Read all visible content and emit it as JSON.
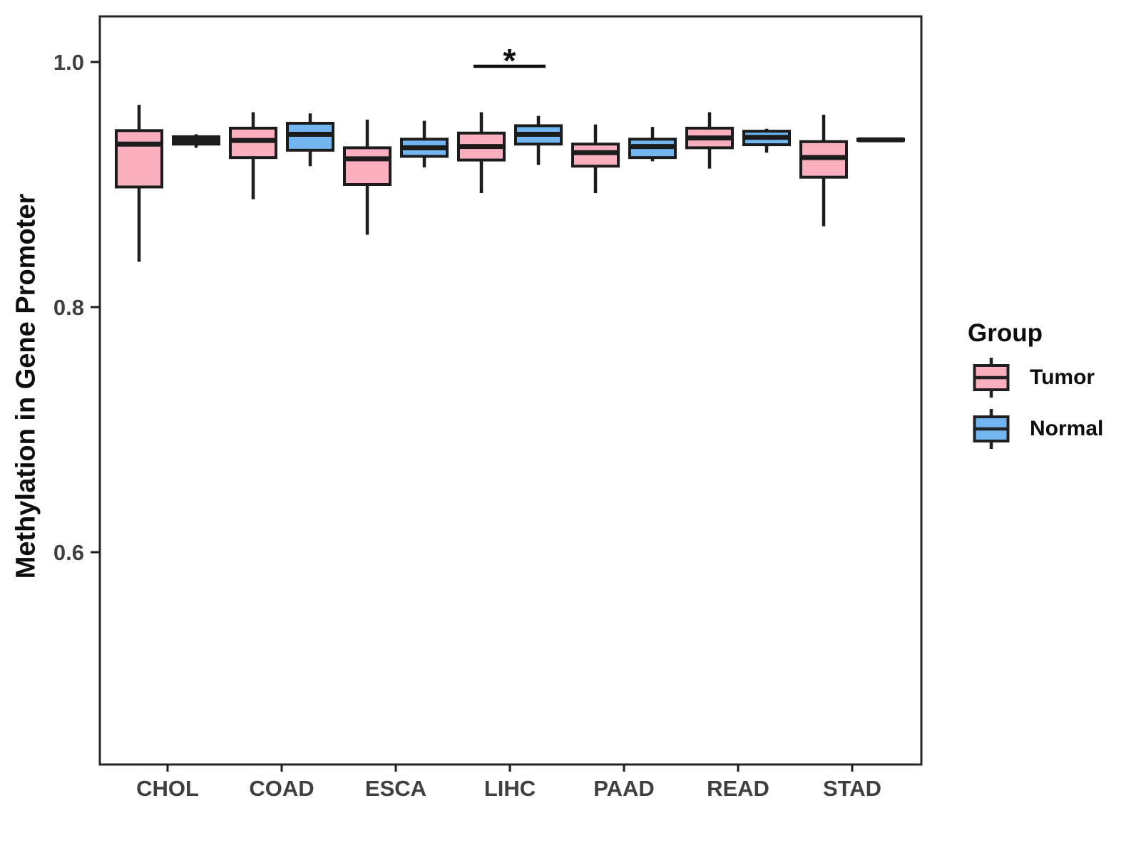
{
  "colors": {
    "background": "#FFFFFF",
    "panel_border": "#262626",
    "box_border": "#1C1C1C",
    "axis_text": "#3F3F3F",
    "text": "#0D0D0D",
    "tumor_fill": "#FAAFBF",
    "normal_fill": "#71B6F0"
  },
  "chart_data": {
    "type": "boxplot",
    "ylabel": "Methylation in Gene Promoter",
    "legend_title": "Group",
    "legend_position": "right",
    "grid": false,
    "ylim": [
      0.427,
      1.037
    ],
    "y_ticks": [
      {
        "value": 1.0,
        "label": "1.0"
      },
      {
        "value": 0.8,
        "label": "0.8"
      },
      {
        "value": 0.6,
        "label": "0.6"
      }
    ],
    "categories": [
      "CHOL",
      "COAD",
      "ESCA",
      "LIHC",
      "PAAD",
      "READ",
      "STAD"
    ],
    "series": [
      {
        "name": "Tumor",
        "color": "#FAAFBF",
        "boxes": [
          {
            "category": "CHOL",
            "min": 0.837,
            "q1": 0.898,
            "median": 0.933,
            "q3": 0.944,
            "max": 0.965
          },
          {
            "category": "COAD",
            "min": 0.888,
            "q1": 0.922,
            "median": 0.936,
            "q3": 0.946,
            "max": 0.959
          },
          {
            "category": "ESCA",
            "min": 0.859,
            "q1": 0.9,
            "median": 0.921,
            "q3": 0.93,
            "max": 0.953
          },
          {
            "category": "LIHC",
            "min": 0.893,
            "q1": 0.92,
            "median": 0.931,
            "q3": 0.942,
            "max": 0.959
          },
          {
            "category": "PAAD",
            "min": 0.893,
            "q1": 0.915,
            "median": 0.926,
            "q3": 0.933,
            "max": 0.949
          },
          {
            "category": "READ",
            "min": 0.913,
            "q1": 0.93,
            "median": 0.938,
            "q3": 0.946,
            "max": 0.959
          },
          {
            "category": "STAD",
            "min": 0.866,
            "q1": 0.906,
            "median": 0.922,
            "q3": 0.935,
            "max": 0.957
          }
        ]
      },
      {
        "name": "Normal",
        "color": "#71B6F0",
        "boxes": [
          {
            "category": "CHOL",
            "min": 0.93,
            "q1": 0.933,
            "median": 0.936,
            "q3": 0.939,
            "max": 0.941
          },
          {
            "category": "COAD",
            "min": 0.915,
            "q1": 0.928,
            "median": 0.941,
            "q3": 0.95,
            "max": 0.958
          },
          {
            "category": "ESCA",
            "min": 0.914,
            "q1": 0.923,
            "median": 0.93,
            "q3": 0.937,
            "max": 0.952
          },
          {
            "category": "LIHC",
            "min": 0.916,
            "q1": 0.933,
            "median": 0.941,
            "q3": 0.948,
            "max": 0.956
          },
          {
            "category": "PAAD",
            "min": 0.919,
            "q1": 0.922,
            "median": 0.931,
            "q3": 0.937,
            "max": 0.947
          },
          {
            "category": "READ",
            "min": 0.926,
            "q1": 0.9325,
            "median": 0.9385,
            "q3": 0.9435,
            "max": 0.9455
          },
          {
            "category": "STAD",
            "min": 0.9355,
            "q1": 0.936,
            "median": 0.9365,
            "q3": 0.937,
            "max": 0.9375
          }
        ]
      }
    ],
    "significance": [
      {
        "category": "LIHC",
        "label": "*",
        "bar_y": 0.9965,
        "label_y": 0.992
      }
    ]
  }
}
